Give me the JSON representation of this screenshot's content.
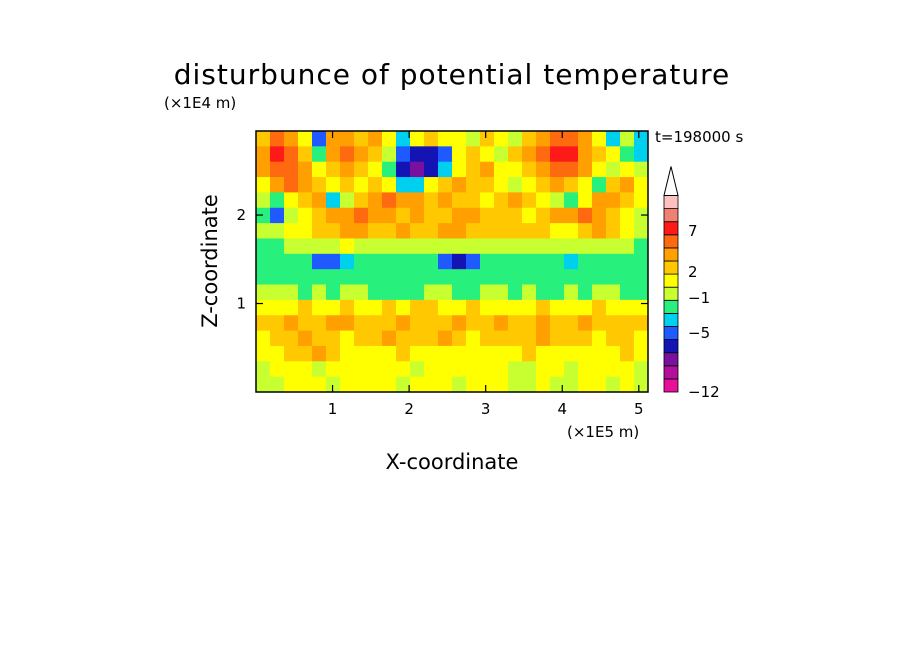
{
  "chart_data": {
    "type": "heatmap",
    "title": "disturbunce of potential temperature",
    "time_label": "t=198000 s",
    "xlabel": "X-coordinate",
    "ylabel": "Z-coordinate",
    "x_unit": "(×1E5 m)",
    "y_unit": "(×1E4 m)",
    "x_ticks": [
      "1",
      "2",
      "3",
      "4",
      "5"
    ],
    "y_ticks": [
      "1",
      "2"
    ],
    "xlim": [
      0,
      5.12
    ],
    "ylim": [
      0,
      2.95
    ],
    "colorbar": {
      "levels": [
        -12,
        -10,
        -8,
        -6,
        -5,
        -3,
        -1,
        0,
        1,
        2,
        3,
        5,
        7,
        9,
        11
      ],
      "tick_labels": [
        "7",
        "2",
        "−1",
        "−5",
        "−12"
      ],
      "colors": [
        "#e8109a",
        "#b0109a",
        "#7a10a0",
        "#1414b4",
        "#1e5aff",
        "#00d0f0",
        "#28f07c",
        "#c8ff30",
        "#ffff00",
        "#ffc800",
        "#ffa000",
        "#ff6a10",
        "#ff1a1a",
        "#f08070",
        "#ffc0c0"
      ],
      "extend": "max"
    },
    "z_rows_top_to_bottom": [
      [
        2,
        5,
        4,
        1,
        -4,
        3,
        3,
        2,
        3,
        1,
        -3,
        1,
        2,
        1,
        1,
        0,
        2,
        1,
        0,
        2,
        3,
        5,
        6,
        3,
        1,
        -2,
        0,
        -3
      ],
      [
        4,
        7,
        5,
        2,
        -1,
        3,
        5,
        3,
        2,
        0,
        -5,
        -6,
        -6,
        -5,
        1,
        2,
        1,
        0,
        2,
        3,
        5,
        8,
        7,
        4,
        2,
        1,
        -1,
        -2
      ],
      [
        3,
        5,
        6,
        4,
        1,
        2,
        3,
        2,
        1,
        -1,
        -6,
        -7,
        -6,
        -3,
        1,
        2,
        3,
        1,
        1,
        2,
        3,
        6,
        5,
        3,
        1,
        0,
        1,
        0
      ],
      [
        1,
        3,
        5,
        4,
        2,
        1,
        2,
        1,
        2,
        1,
        -2,
        -3,
        1,
        2,
        3,
        2,
        2,
        1,
        0,
        1,
        2,
        3,
        2,
        1,
        -1,
        2,
        3,
        1
      ],
      [
        0,
        -1,
        1,
        2,
        3,
        -2,
        0,
        2,
        4,
        6,
        4,
        3,
        2,
        3,
        2,
        2,
        1,
        2,
        3,
        2,
        1,
        0,
        -1,
        1,
        3,
        4,
        2,
        1
      ],
      [
        -1,
        -4,
        0,
        1,
        2,
        3,
        4,
        5,
        4,
        3,
        2,
        3,
        2,
        2,
        3,
        3,
        2,
        2,
        2,
        1,
        2,
        3,
        3,
        5,
        4,
        2,
        1,
        0
      ],
      [
        0,
        0,
        1,
        1,
        2,
        2,
        3,
        3,
        2,
        2,
        3,
        2,
        2,
        3,
        3,
        2,
        2,
        2,
        2,
        2,
        2,
        1,
        1,
        2,
        3,
        2,
        1,
        0
      ],
      [
        -1,
        -1,
        0,
        0,
        0,
        0,
        1,
        0,
        0,
        0,
        0,
        0,
        0,
        0,
        0,
        0,
        0,
        0,
        0,
        0,
        0,
        0,
        0,
        0,
        0,
        0,
        0,
        -1
      ],
      [
        -1,
        -1,
        -1,
        -1,
        -4,
        -5,
        -3,
        -1,
        -1,
        -1,
        -1,
        -1,
        -1,
        -5,
        -6,
        -5,
        -1,
        -1,
        -1,
        -1,
        -1,
        -1,
        -2,
        -1,
        -1,
        -1,
        -1,
        -1
      ],
      [
        -1,
        -1,
        -1,
        -1,
        -1,
        -1,
        -1,
        -1,
        -1,
        -1,
        -1,
        -1,
        -1,
        -1,
        -1,
        -1,
        -1,
        -1,
        -1,
        -1,
        -1,
        -1,
        -1,
        -1,
        -1,
        -1,
        -1,
        -1
      ],
      [
        0,
        0,
        0,
        -1,
        0,
        -1,
        0,
        0,
        -1,
        -1,
        -1,
        -1,
        0,
        0,
        -1,
        -1,
        0,
        0,
        -1,
        0,
        -1,
        -1,
        0,
        -1,
        0,
        0,
        -1,
        -1
      ],
      [
        1,
        1,
        1,
        2,
        1,
        1,
        2,
        1,
        1,
        2,
        1,
        2,
        2,
        1,
        1,
        2,
        1,
        1,
        1,
        1,
        2,
        1,
        1,
        1,
        2,
        1,
        1,
        1
      ],
      [
        2,
        2,
        3,
        2,
        2,
        3,
        3,
        2,
        2,
        2,
        3,
        2,
        2,
        2,
        3,
        2,
        2,
        3,
        2,
        2,
        3,
        2,
        2,
        3,
        2,
        2,
        2,
        2
      ],
      [
        1,
        2,
        2,
        3,
        2,
        2,
        1,
        2,
        2,
        3,
        2,
        2,
        2,
        3,
        2,
        1,
        2,
        2,
        2,
        2,
        3,
        2,
        2,
        2,
        1,
        2,
        2,
        1
      ],
      [
        1,
        1,
        2,
        2,
        3,
        2,
        1,
        1,
        1,
        1,
        2,
        1,
        1,
        1,
        1,
        1,
        1,
        1,
        1,
        2,
        1,
        1,
        1,
        1,
        1,
        1,
        2,
        1
      ],
      [
        0,
        1,
        1,
        1,
        0,
        1,
        1,
        1,
        1,
        1,
        1,
        0,
        1,
        1,
        1,
        1,
        1,
        1,
        0,
        0,
        1,
        1,
        0,
        1,
        1,
        1,
        1,
        0
      ],
      [
        0,
        0,
        1,
        1,
        1,
        0,
        1,
        1,
        1,
        1,
        0,
        1,
        1,
        1,
        0,
        1,
        1,
        1,
        0,
        0,
        1,
        0,
        0,
        1,
        1,
        0,
        1,
        0
      ]
    ]
  }
}
